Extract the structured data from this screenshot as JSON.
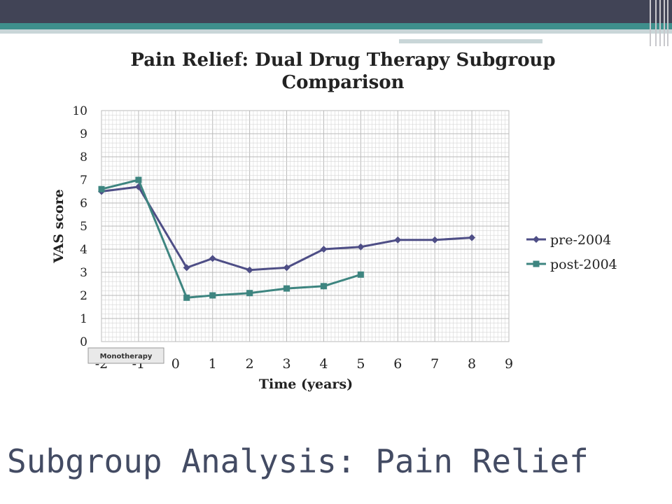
{
  "slide": {
    "title": "Subgroup Analysis: Pain Relief"
  },
  "colors": {
    "band_dark": "#414456",
    "band_teal": "#3E8F8C",
    "band_light": "#C9D6D8",
    "pre": "#4E4E86",
    "post": "#3E8580",
    "title_text": "#434B63"
  },
  "chart_data": {
    "type": "line",
    "title": "Pain Relief: Dual Drug Therapy Subgroup Comparison",
    "xlabel": "Time (years)",
    "ylabel": "VAS score",
    "xlim": [
      -2,
      9
    ],
    "ylim": [
      0,
      10
    ],
    "x_ticks": [
      "-2",
      "-1",
      "0",
      "1",
      "2",
      "3",
      "4",
      "5",
      "6",
      "7",
      "8",
      "9"
    ],
    "y_ticks": [
      "0",
      "1",
      "2",
      "3",
      "4",
      "5",
      "6",
      "7",
      "8",
      "9",
      "10"
    ],
    "grid": true,
    "legend_position": "right",
    "annotation": "Monotherapy",
    "series": [
      {
        "name": "pre-2004",
        "marker": "diamond",
        "x": [
          -2,
          -1,
          0.3,
          1,
          2,
          3,
          4,
          5,
          6,
          7,
          8
        ],
        "y": [
          6.5,
          6.7,
          3.2,
          3.6,
          3.1,
          3.2,
          4.0,
          4.1,
          4.4,
          4.4,
          4.5
        ]
      },
      {
        "name": "post-2004",
        "marker": "square",
        "x": [
          -2,
          -1,
          0.3,
          1,
          2,
          3,
          4,
          5
        ],
        "y": [
          6.6,
          7.0,
          1.9,
          2.0,
          2.1,
          2.3,
          2.4,
          2.9
        ]
      }
    ]
  }
}
